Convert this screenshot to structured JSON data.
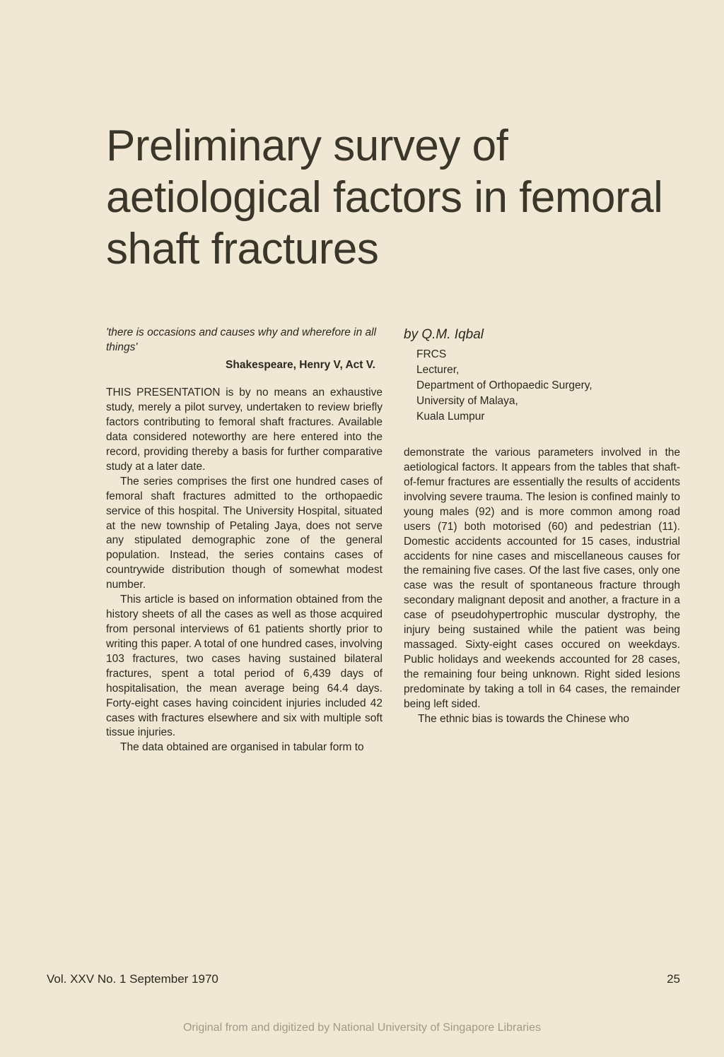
{
  "title": "Preliminary survey of aetiological factors in femoral shaft fractures",
  "epigraph": {
    "quote": "'there is occasions and causes why and wherefore in all things'",
    "source": "Shakespeare, Henry V, Act V."
  },
  "left_paragraphs": [
    "THIS PRESENTATION is by no means an exhaustive study, merely a pilot survey, undertaken to review briefly factors contributing to femoral shaft fractures. Available data considered noteworthy are here entered into the record, providing thereby a basis for further comparative study at a later date.",
    "The series comprises the first one hundred cases of femoral shaft fractures admitted to the orthopaedic service of this hospital. The University Hospital, situated at the new township of Petaling Jaya, does not serve any stipulated demographic zone of the general population. Instead, the series contains cases of countrywide distribution though of somewhat modest number.",
    "This article is based on information obtained from the history sheets of all the cases as well as those acquired from personal interviews of 61 patients shortly prior to writing this paper. A total of one hundred cases, involving 103 fractures, two cases having sustained bilateral fractures, spent a total period of 6,439 days of hospitalisation, the mean average being 64.4 days. Forty-eight cases having coincident injuries included 42 cases with fractures elsewhere and six with multiple soft tissue injuries.",
    "The data obtained are organised in tabular form to"
  ],
  "author": {
    "byline": "by Q.M. Iqbal",
    "credentials": [
      "FRCS",
      "Lecturer,",
      "Department of Orthopaedic Surgery,",
      "University of Malaya,",
      "Kuala Lumpur"
    ]
  },
  "right_paragraphs": [
    "demonstrate the various parameters involved in the aetiological factors. It appears from the tables that shaft-of-femur fractures are essentially the results of accidents involving severe trauma. The lesion is confined mainly to young males (92) and is more common among road users (71) both motorised (60) and pedestrian (11). Domestic accidents accounted for 15 cases, industrial accidents for nine cases and miscellaneous causes for the remaining five cases. Of the last five cases, only one case was the result of spontaneous fracture through secondary malignant deposit and another, a fracture in a case of pseudohypertrophic muscular dystrophy, the injury being sustained while the patient was being massaged. Sixty-eight cases occured on weekdays. Public holidays and weekends accounted for 28 cases, the remaining four being unknown. Right sided lesions predominate by taking a toll in 64 cases, the remainder being left sided.",
    "The ethnic bias is towards the Chinese who"
  ],
  "footer": {
    "issue": "Vol. XXV No. 1 September 1970",
    "page": "25"
  },
  "provenance": "Original from and digitized by National University of Singapore Libraries"
}
